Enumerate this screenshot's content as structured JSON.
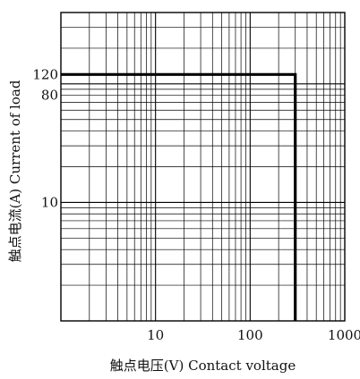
{
  "chart_data": {
    "type": "line",
    "title": "",
    "xlabel": "触点电压(V) Contact voltage",
    "ylabel": "触点电流(A) Current of load",
    "x_scale": "log",
    "y_scale": "log",
    "xlim": [
      1,
      1000
    ],
    "ylim": [
      1,
      400
    ],
    "x_ticks": [
      {
        "value": 10,
        "label": "10"
      },
      {
        "value": 100,
        "label": "100"
      },
      {
        "value": 1000,
        "label": "1000"
      }
    ],
    "y_ticks": [
      {
        "value": 10,
        "label": "10"
      },
      {
        "value": 80,
        "label": "80"
      },
      {
        "value": 120,
        "label": "120"
      }
    ],
    "grid": true,
    "series": [
      {
        "x": [
          1,
          300,
          300
        ],
        "y": [
          120,
          120,
          1
        ]
      }
    ]
  },
  "colors": {
    "grid": "#000000",
    "boundary": "#000000",
    "background": "#ffffff"
  }
}
